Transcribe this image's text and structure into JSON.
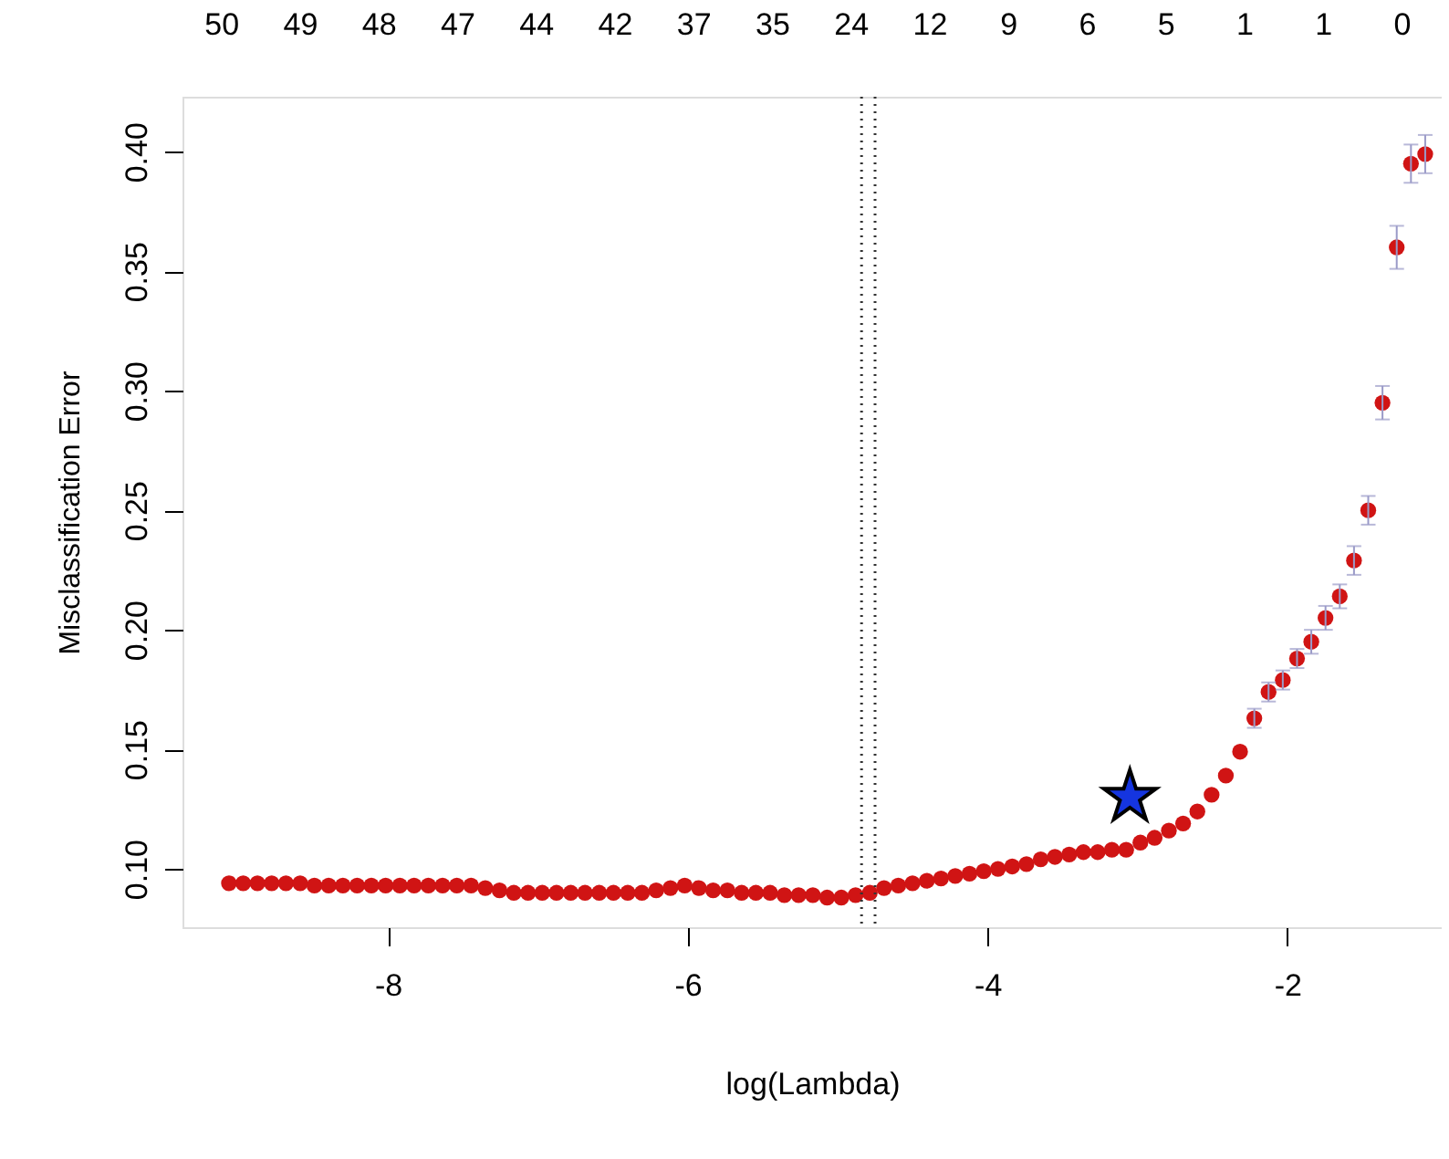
{
  "chart_data": {
    "type": "scatter",
    "xlabel": "log(Lambda)",
    "ylabel": "Misclassification Error",
    "xlim": [
      -9.37,
      -0.97
    ],
    "ylim": [
      0.0756,
      0.423
    ],
    "xticks": [
      {
        "value": -8,
        "label": "-8"
      },
      {
        "value": -6,
        "label": "-6"
      },
      {
        "value": -4,
        "label": "-4"
      },
      {
        "value": -2,
        "label": "-2"
      }
    ],
    "yticks": [
      {
        "value": 0.1,
        "label": "0.10"
      },
      0.15,
      {
        "value": 0.2,
        "label": "0.20"
      },
      0.25,
      {
        "value": 0.3,
        "label": "0.30"
      },
      0.35,
      {
        "value": 0.4,
        "label": "0.40"
      }
    ],
    "annotations": [
      "50",
      "49",
      "48",
      "47",
      "44",
      "42",
      "37",
      "35",
      "24",
      "12",
      "9",
      "6",
      "5",
      "1",
      "1",
      "0"
    ],
    "grid": false,
    "series": [
      {
        "marker": "circle",
        "color": "#d01414",
        "x": [
          -9.06,
          -8.965,
          -8.87,
          -8.775,
          -8.68,
          -8.585,
          -8.49,
          -8.395,
          -8.3,
          -8.205,
          -8.11,
          -8.015,
          -7.92,
          -7.825,
          -7.73,
          -7.635,
          -7.54,
          -7.445,
          -7.35,
          -7.255,
          -7.16,
          -7.065,
          -6.97,
          -6.875,
          -6.78,
          -6.685,
          -6.59,
          -6.495,
          -6.4,
          -6.305,
          -6.21,
          -6.115,
          -6.02,
          -5.925,
          -5.83,
          -5.735,
          -5.64,
          -5.545,
          -5.45,
          -5.355,
          -5.26,
          -5.165,
          -5.07,
          -4.975,
          -4.88,
          -4.785,
          -4.69,
          -4.595,
          -4.5,
          -4.405,
          -4.31,
          -4.215,
          -4.12,
          -4.025,
          -3.93,
          -3.835,
          -3.74,
          -3.645,
          -3.55,
          -3.455,
          -3.36,
          -3.265,
          -3.17,
          -3.075,
          -2.98,
          -2.885,
          -2.79,
          -2.695,
          -2.6,
          -2.505,
          -2.41,
          -2.315,
          -2.22,
          -2.125,
          -2.03,
          -1.935,
          -1.84,
          -1.745,
          -1.65,
          -1.555,
          -1.46,
          -1.365,
          -1.27,
          -1.175,
          -1.08
        ],
        "values": [
          0.094,
          0.094,
          0.094,
          0.094,
          0.094,
          0.094,
          0.093,
          0.093,
          0.093,
          0.093,
          0.093,
          0.093,
          0.093,
          0.093,
          0.093,
          0.093,
          0.093,
          0.093,
          0.092,
          0.091,
          0.09,
          0.09,
          0.09,
          0.09,
          0.09,
          0.09,
          0.09,
          0.09,
          0.09,
          0.09,
          0.091,
          0.092,
          0.093,
          0.092,
          0.091,
          0.091,
          0.09,
          0.09,
          0.09,
          0.089,
          0.089,
          0.089,
          0.088,
          0.088,
          0.089,
          0.09,
          0.092,
          0.093,
          0.094,
          0.095,
          0.096,
          0.097,
          0.098,
          0.099,
          0.1,
          0.101,
          0.102,
          0.104,
          0.105,
          0.106,
          0.107,
          0.107,
          0.108,
          0.108,
          0.111,
          0.113,
          0.116,
          0.119,
          0.124,
          0.131,
          0.139,
          0.149,
          0.163,
          0.174,
          0.179,
          0.188,
          0.195,
          0.205,
          0.214,
          0.229,
          0.25,
          0.295,
          0.36,
          0.395,
          0.399
        ],
        "errors": [
          null,
          null,
          null,
          null,
          null,
          null,
          null,
          null,
          null,
          null,
          null,
          null,
          null,
          null,
          null,
          null,
          null,
          null,
          null,
          null,
          null,
          null,
          null,
          null,
          null,
          null,
          null,
          null,
          null,
          null,
          null,
          null,
          null,
          null,
          null,
          null,
          null,
          null,
          null,
          null,
          null,
          null,
          null,
          null,
          null,
          null,
          null,
          null,
          null,
          null,
          null,
          null,
          null,
          null,
          null,
          null,
          null,
          null,
          null,
          null,
          null,
          null,
          null,
          null,
          null,
          null,
          null,
          null,
          null,
          null,
          null,
          null,
          0.004,
          0.004,
          0.004,
          0.004,
          0.005,
          0.005,
          0.005,
          0.006,
          0.006,
          0.007,
          0.009,
          0.008,
          0.008
        ]
      },
      {
        "marker": "star",
        "color": "#1535e0",
        "x": [
          -3.05
        ],
        "values": [
          0.13
        ]
      }
    ],
    "ref_lines": [
      {
        "axis": "x",
        "value": -4.84,
        "line_style": "dotted",
        "color": "#333333"
      },
      {
        "axis": "x",
        "value": -4.75,
        "line_style": "dotted",
        "color": "#333333"
      }
    ]
  }
}
